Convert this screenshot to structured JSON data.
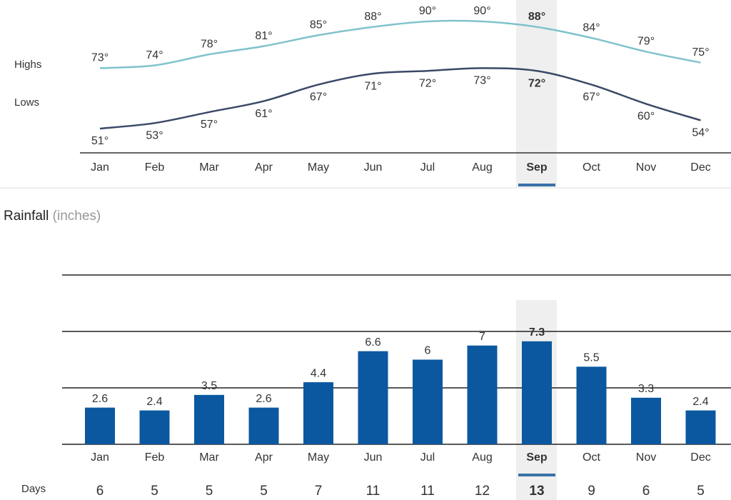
{
  "chart_data": [
    {
      "type": "line",
      "categories": [
        "Jan",
        "Feb",
        "Mar",
        "Apr",
        "May",
        "Jun",
        "Jul",
        "Aug",
        "Sep",
        "Oct",
        "Nov",
        "Dec"
      ],
      "selected": "Sep",
      "series": [
        {
          "name": "Highs",
          "color": "#7fc3cb",
          "values": [
            73,
            74,
            78,
            81,
            85,
            88,
            90,
            90,
            88,
            84,
            79,
            75
          ],
          "value_labels": [
            "73°",
            "74°",
            "78°",
            "81°",
            "85°",
            "88°",
            "90°",
            "90°",
            "88°",
            "84°",
            "79°",
            "75°"
          ]
        },
        {
          "name": "Lows",
          "color": "#3b4868",
          "values": [
            51,
            53,
            57,
            61,
            67,
            71,
            72,
            73,
            72,
            67,
            60,
            54
          ],
          "value_labels": [
            "51°",
            "53°",
            "57°",
            "61°",
            "67°",
            "71°",
            "72°",
            "73°",
            "72°",
            "67°",
            "60°",
            "54°"
          ]
        }
      ]
    },
    {
      "type": "bar",
      "title": "Rainfall",
      "subtitle": "(inches)",
      "categories": [
        "Jan",
        "Feb",
        "Mar",
        "Apr",
        "May",
        "Jun",
        "Jul",
        "Aug",
        "Sep",
        "Oct",
        "Nov",
        "Dec"
      ],
      "selected": "Sep",
      "values": [
        2.6,
        2.4,
        3.5,
        2.6,
        4.4,
        6.6,
        6,
        7,
        7.3,
        5.5,
        3.3,
        2.4
      ],
      "color": "#0b58a0",
      "ylim": [
        0,
        12
      ],
      "yticks": [
        0,
        4,
        8,
        12
      ],
      "grid": true,
      "days": {
        "label": "Days",
        "values": [
          6,
          5,
          5,
          5,
          7,
          11,
          11,
          12,
          13,
          9,
          6,
          5
        ]
      }
    }
  ]
}
